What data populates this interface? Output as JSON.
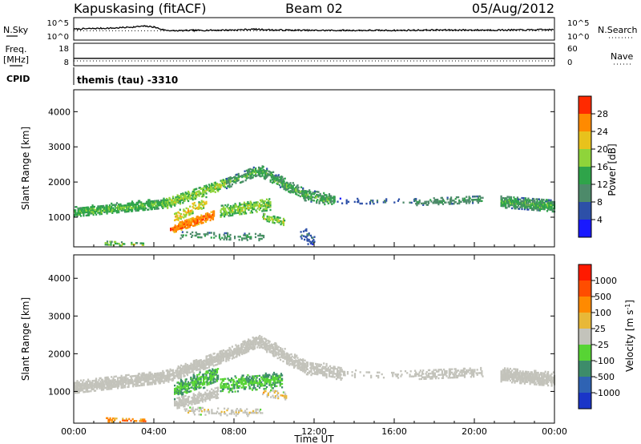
{
  "header": {
    "radar": "Kapuskasing (fitACF)",
    "beam": "Beam 02",
    "date": "05/Aug/2012",
    "cpid_program": "themis (tau) -3310"
  },
  "chart_data": [
    {
      "type": "line",
      "left_label": "N.Sky",
      "right_label": "N.Search",
      "left_ticks": [
        "10^5",
        "10^0"
      ],
      "right_ticks": [
        "10^5",
        "10^0"
      ],
      "ylim_log10": [
        0,
        5
      ],
      "x": [
        0,
        1,
        2,
        3,
        3.5,
        4,
        4.5,
        5,
        6,
        8,
        9,
        10,
        12,
        14,
        16,
        18,
        20,
        22,
        24
      ],
      "n_sky": [
        2.4,
        2.6,
        2.7,
        3.0,
        3.2,
        3.0,
        2.2,
        2.0,
        2.1,
        2.2,
        2.4,
        2.2,
        2.1,
        2.1,
        2.1,
        2.2,
        2.2,
        2.2,
        2.3
      ],
      "n_search_style": "dotted"
    },
    {
      "type": "line",
      "left_label": "Freq.",
      "left_unit": "[MHz]",
      "left_ticks": [
        "18",
        "8"
      ],
      "right_label": "Nave",
      "right_ticks": [
        "60",
        "0"
      ],
      "freq_mhz_level": 11,
      "nave_level": 10,
      "nave_style": "dotted"
    },
    {
      "type": "heatmap",
      "name": "power",
      "ylabel": "Slant Range [km]",
      "yticks": [
        "1000",
        "2000",
        "3000",
        "4000"
      ],
      "ylim": [
        180,
        4600
      ],
      "colorbar_label": "Power [dB]",
      "colorbar_ticks": [
        "4",
        "8",
        "12",
        "16",
        "20",
        "24",
        "28"
      ],
      "colorbar_range": [
        0,
        30
      ],
      "colors": [
        "#1919ff",
        "#2d50a8",
        "#4d8a6a",
        "#2fa44a",
        "#8fd43a",
        "#e8c21c",
        "#ff8a00",
        "#ff2a00"
      ]
    },
    {
      "type": "heatmap",
      "name": "velocity",
      "ylabel": "Slant Range [km]",
      "yticks": [
        "1000",
        "2000",
        "3000",
        "4000"
      ],
      "ylim": [
        180,
        4600
      ],
      "colorbar_label": "Velocity [m s^-1]",
      "colorbar_ticks": [
        "1000",
        "500",
        "100",
        "25",
        "-25",
        "-100",
        "-500",
        "-1000"
      ],
      "colors": [
        "#1a35c8",
        "#2f63b3",
        "#3d8c6a",
        "#57d434",
        "#c3c3bb",
        "#e8b838",
        "#ff8a00",
        "#ff4d00",
        "#ff1a00"
      ],
      "ground_scatter_color": "#c3c3bb"
    }
  ],
  "time_axis": {
    "label": "Time UT",
    "ticks": [
      "00:00",
      "04:00",
      "08:00",
      "12:00",
      "16:00",
      "20:00",
      "00:00"
    ],
    "xlim_hours": [
      0,
      24
    ]
  },
  "bands_power": [
    {
      "t0": 0.0,
      "t1": 4.6,
      "c0": 1130,
      "c1": 1380,
      "w": 110,
      "p": 0.75,
      "lvl": [
        2,
        4
      ]
    },
    {
      "t0": 4.6,
      "t1": 7.6,
      "c0": 1380,
      "c1": 1950,
      "w": 120,
      "p": 0.7,
      "lvl": [
        2,
        5
      ]
    },
    {
      "t0": 7.6,
      "t1": 9.2,
      "c0": 1950,
      "c1": 2330,
      "w": 120,
      "p": 0.7,
      "lvl": [
        1,
        4
      ]
    },
    {
      "t0": 9.2,
      "t1": 11.5,
      "c0": 2330,
      "c1": 1620,
      "w": 130,
      "p": 0.7,
      "lvl": [
        1,
        4
      ]
    },
    {
      "t0": 11.5,
      "t1": 13.0,
      "c0": 1620,
      "c1": 1450,
      "w": 130,
      "p": 0.6,
      "lvl": [
        1,
        4
      ]
    },
    {
      "t0": 13.0,
      "t1": 17.0,
      "c0": 1450,
      "c1": 1420,
      "w": 70,
      "p": 0.12,
      "lvl": [
        0,
        2
      ]
    },
    {
      "t0": 17.0,
      "t1": 20.4,
      "c0": 1420,
      "c1": 1500,
      "w": 90,
      "p": 0.45,
      "lvl": [
        1,
        3
      ]
    },
    {
      "t0": 21.3,
      "t1": 24.0,
      "c0": 1420,
      "c1": 1300,
      "w": 130,
      "p": 0.85,
      "lvl": [
        1,
        4
      ]
    },
    {
      "t0": 4.8,
      "t1": 7.0,
      "c0": 640,
      "c1": 1050,
      "w": 100,
      "p": 0.85,
      "lvl": [
        5,
        7
      ]
    },
    {
      "t0": 5.0,
      "t1": 6.6,
      "c0": 980,
      "c1": 1420,
      "w": 110,
      "p": 0.55,
      "lvl": [
        3,
        6
      ]
    },
    {
      "t0": 7.3,
      "t1": 9.8,
      "c0": 1150,
      "c1": 1350,
      "w": 130,
      "p": 0.6,
      "lvl": [
        2,
        5
      ]
    },
    {
      "t0": 9.4,
      "t1": 10.5,
      "c0": 1000,
      "c1": 850,
      "w": 90,
      "p": 0.5,
      "lvl": [
        2,
        5
      ]
    },
    {
      "t0": 1.5,
      "t1": 3.5,
      "c0": 260,
      "c1": 200,
      "w": 60,
      "p": 0.35,
      "lvl": [
        1,
        5
      ]
    },
    {
      "t0": 5.3,
      "t1": 9.5,
      "c0": 480,
      "c1": 420,
      "w": 90,
      "p": 0.3,
      "lvl": [
        1,
        3
      ]
    },
    {
      "t0": 11.3,
      "t1": 12.0,
      "c0": 500,
      "c1": 350,
      "w": 160,
      "p": 0.3,
      "lvl": [
        0,
        2
      ]
    }
  ],
  "bands_velocity": [
    {
      "t0": 0.0,
      "t1": 4.6,
      "c0": 1100,
      "c1": 1380,
      "w": 130,
      "p": 0.85,
      "lvl": [
        4,
        4
      ]
    },
    {
      "t0": 4.6,
      "t1": 7.6,
      "c0": 1380,
      "c1": 1950,
      "w": 130,
      "p": 0.8,
      "lvl": [
        4,
        4
      ]
    },
    {
      "t0": 7.6,
      "t1": 9.2,
      "c0": 1950,
      "c1": 2330,
      "w": 130,
      "p": 0.8,
      "lvl": [
        4,
        4
      ]
    },
    {
      "t0": 9.2,
      "t1": 11.5,
      "c0": 2330,
      "c1": 1620,
      "w": 140,
      "p": 0.8,
      "lvl": [
        4,
        4
      ]
    },
    {
      "t0": 11.5,
      "t1": 13.5,
      "c0": 1620,
      "c1": 1450,
      "w": 140,
      "p": 0.6,
      "lvl": [
        4,
        4
      ]
    },
    {
      "t0": 13.5,
      "t1": 17.0,
      "c0": 1450,
      "c1": 1420,
      "w": 80,
      "p": 0.15,
      "lvl": [
        4,
        4
      ]
    },
    {
      "t0": 17.0,
      "t1": 20.4,
      "c0": 1420,
      "c1": 1500,
      "w": 100,
      "p": 0.5,
      "lvl": [
        4,
        4
      ]
    },
    {
      "t0": 21.3,
      "t1": 24.0,
      "c0": 1420,
      "c1": 1300,
      "w": 140,
      "p": 0.9,
      "lvl": [
        4,
        4
      ]
    },
    {
      "t0": 5.0,
      "t1": 7.2,
      "c0": 650,
      "c1": 950,
      "w": 110,
      "p": 0.75,
      "lvl": [
        4,
        4
      ]
    },
    {
      "t0": 5.0,
      "t1": 7.2,
      "c0": 1000,
      "c1": 1450,
      "w": 170,
      "p": 0.6,
      "lvl": [
        2,
        3
      ]
    },
    {
      "t0": 7.3,
      "t1": 10.4,
      "c0": 1150,
      "c1": 1300,
      "w": 160,
      "p": 0.6,
      "lvl": [
        2,
        3
      ]
    },
    {
      "t0": 9.4,
      "t1": 10.6,
      "c0": 950,
      "c1": 850,
      "w": 80,
      "p": 0.45,
      "lvl": [
        3,
        6
      ]
    },
    {
      "t0": 1.6,
      "t1": 3.6,
      "c0": 240,
      "c1": 200,
      "w": 60,
      "p": 0.3,
      "lvl": [
        5,
        7
      ]
    },
    {
      "t0": 5.5,
      "t1": 9.4,
      "c0": 480,
      "c1": 420,
      "w": 90,
      "p": 0.3,
      "lvl": [
        3,
        5
      ]
    }
  ]
}
